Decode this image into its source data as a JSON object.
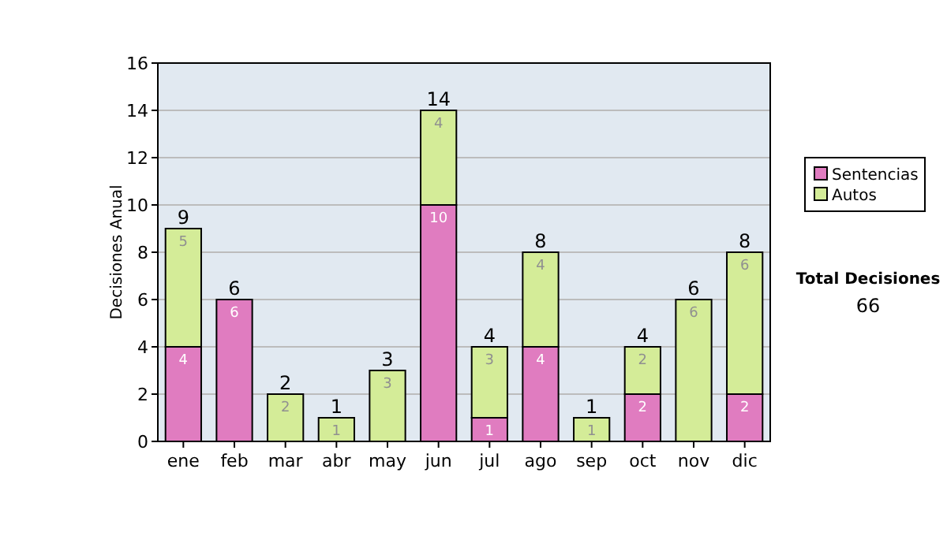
{
  "chart_data": {
    "type": "bar",
    "stacked": true,
    "ylabel": "Decisiones Anual",
    "categories": [
      "ene",
      "feb",
      "mar",
      "abr",
      "may",
      "jun",
      "jul",
      "ago",
      "sep",
      "oct",
      "nov",
      "dic"
    ],
    "series": [
      {
        "name": "Sentencias",
        "color": "#e07cc0",
        "values": [
          4,
          6,
          null,
          null,
          null,
          10,
          1,
          4,
          null,
          2,
          null,
          2
        ]
      },
      {
        "name": "Autos",
        "color": "#d4ec98",
        "values": [
          5,
          null,
          2,
          1,
          3,
          4,
          3,
          4,
          1,
          2,
          6,
          6
        ]
      }
    ],
    "ylim": [
      0,
      16
    ],
    "yticks": [
      0,
      2,
      4,
      6,
      8,
      10,
      12,
      14,
      16
    ],
    "grid": "y",
    "legend": "right",
    "data_labels": true,
    "totals": [
      "9",
      "6",
      "2",
      "1",
      "3",
      "14",
      "4",
      "8",
      "1",
      "4",
      "6",
      "8"
    ],
    "annotations": [
      "Total Decisiones",
      "66"
    ]
  }
}
